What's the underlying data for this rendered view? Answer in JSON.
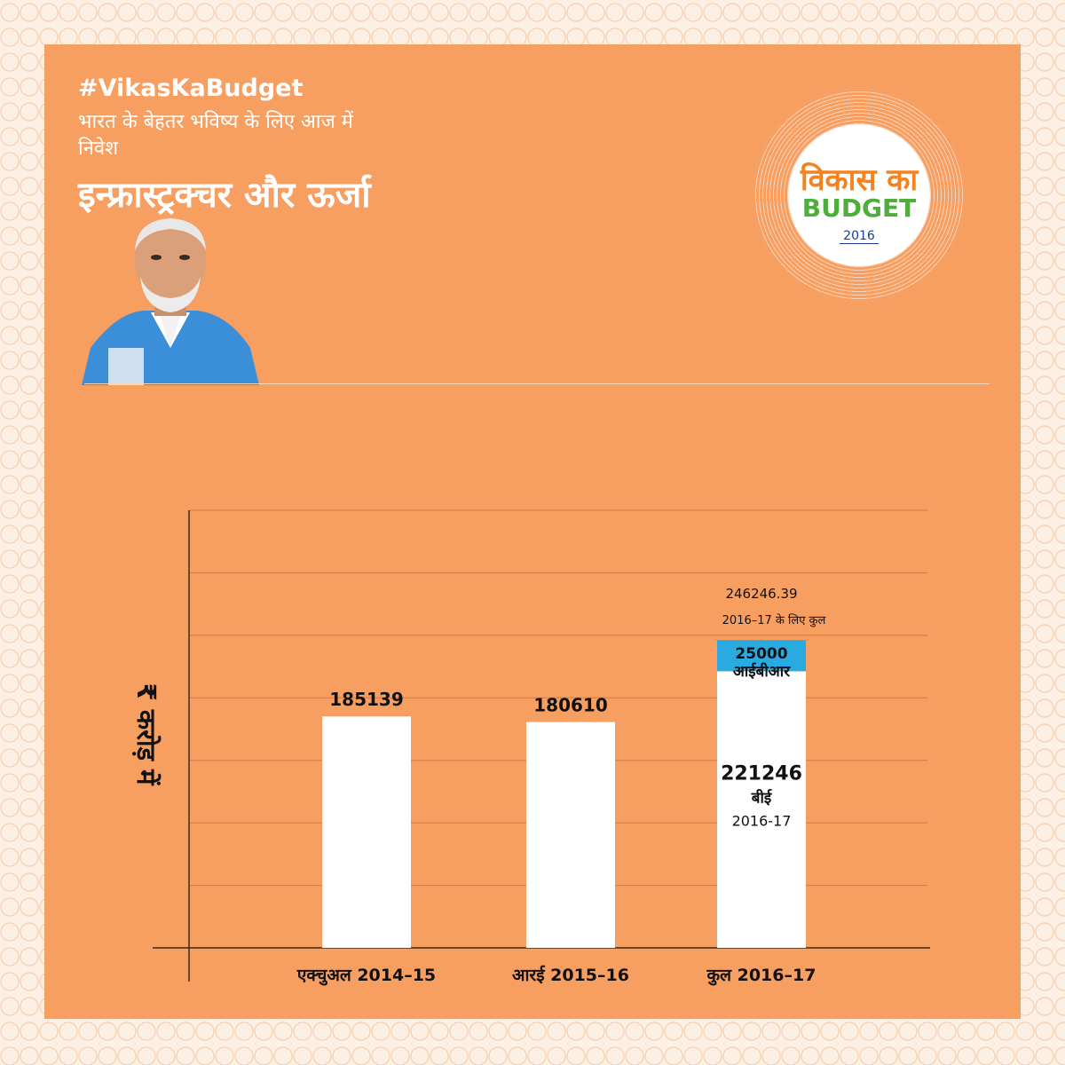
{
  "header": {
    "hashtag": "#VikasKaBudget",
    "tagline": "भारत के बेहतर भविष्य के लिए आज में निवेश",
    "heading": "इन्फ्रास्ट्रक्चर और ऊर्जा"
  },
  "logo": {
    "line1": "विकास का",
    "line2": "BUDGET",
    "year": "2016",
    "colors": {
      "line1": "#f58220",
      "line2": "#4fad3b",
      "year": "#1a3f8f"
    }
  },
  "colors": {
    "background": "#f79e61",
    "bar": "#ffffff",
    "bar_top_segment": "#29abe2",
    "axis": "#3a2a20"
  },
  "chart_data": {
    "type": "bar",
    "stacked": true,
    "ylabel": "₹ करोड़ में",
    "ylim": [
      0,
      350000
    ],
    "grid": true,
    "categories": [
      "एक्चुअल 2014–15",
      "आरई 2015–16",
      "कुल 2016–17"
    ],
    "bars": [
      {
        "category": "एक्चुअल 2014–15",
        "segments": [
          {
            "value": 185139,
            "color": "#ffffff"
          }
        ],
        "label": "185139"
      },
      {
        "category": "आरई 2015–16",
        "segments": [
          {
            "value": 180610,
            "color": "#ffffff"
          }
        ],
        "label": "180610"
      },
      {
        "category": "कुल 2016–17",
        "segments": [
          {
            "value": 221246,
            "color": "#ffffff",
            "label": "221246",
            "sublabel1": "बीई",
            "sublabel2": "2016-17"
          },
          {
            "value": 25000,
            "color": "#29abe2",
            "label": "25000",
            "sublabel1": "आईबीआर"
          }
        ],
        "total_value": "246246.39",
        "total_label": "2016–17 के लिए कुल"
      }
    ]
  }
}
